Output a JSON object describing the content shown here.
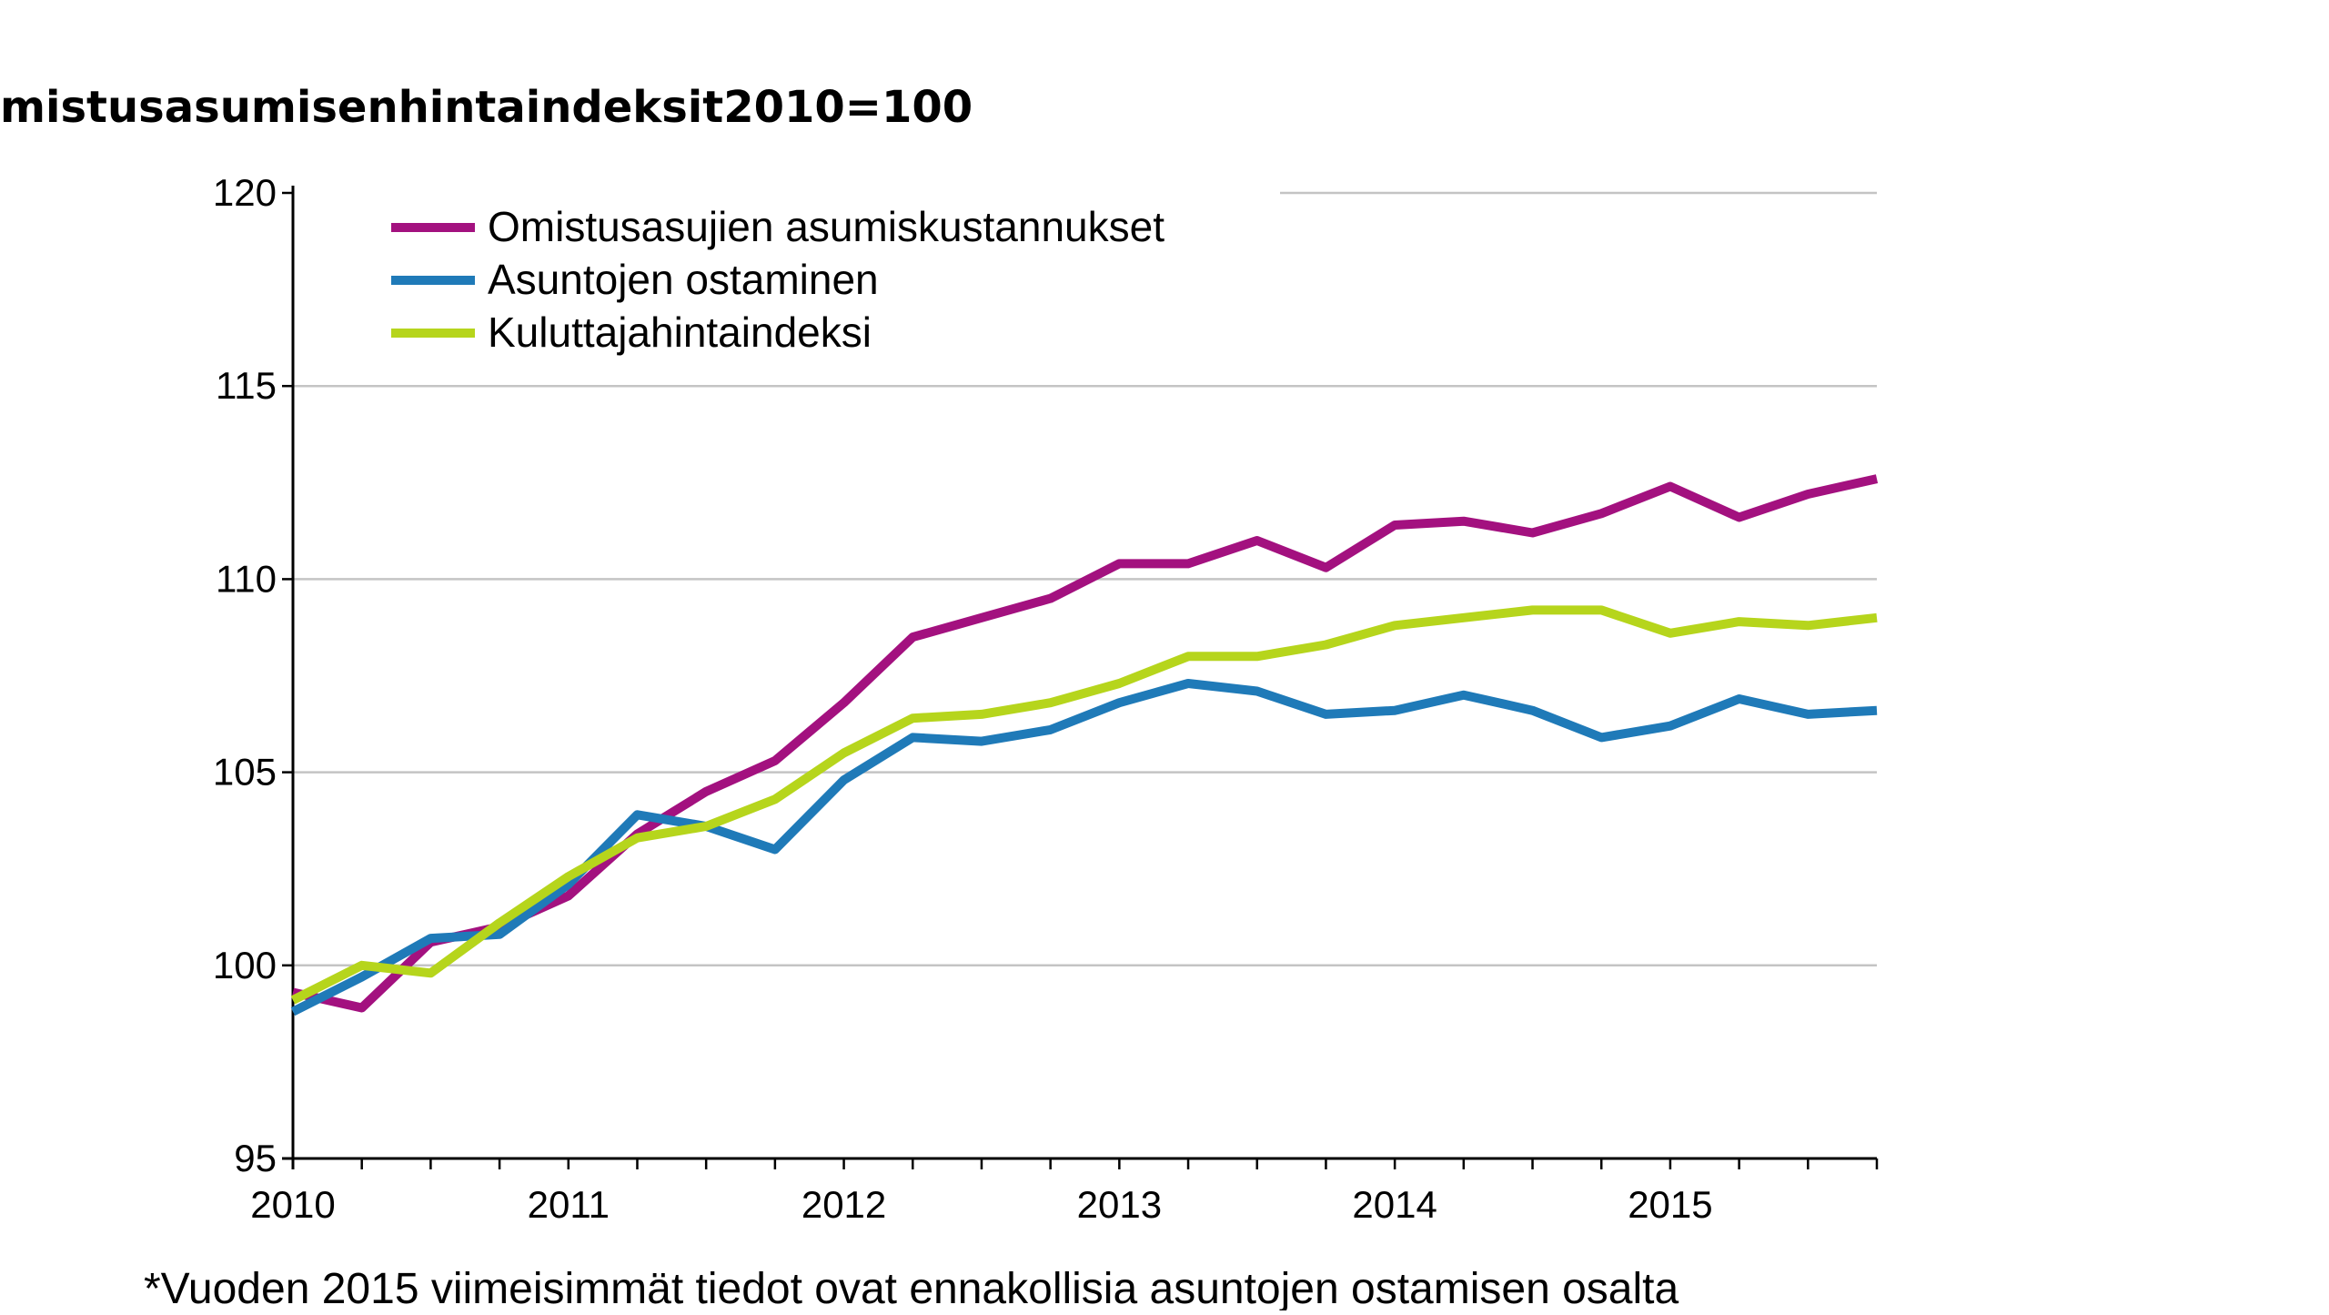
{
  "chart_data": {
    "type": "line",
    "title": "mistusasumisenhintaindeksit2010=100",
    "footnote": "*Vuoden 2015 viimeisimmät tiedot ovat ennakollisia asuntojen ostamisen osalta",
    "x_tick_labels": [
      "2010",
      "2011",
      "2012",
      "2013",
      "2014",
      "2015"
    ],
    "y_tick_labels": [
      "95",
      "100",
      "105",
      "110",
      "115",
      "120"
    ],
    "xlim": [
      2010.0,
      2015.75
    ],
    "ylim": [
      95,
      120
    ],
    "grid": true,
    "legend_position": "top-left",
    "x": [
      2010.0,
      2010.25,
      2010.5,
      2010.75,
      2011.0,
      2011.25,
      2011.5,
      2011.75,
      2012.0,
      2012.25,
      2012.5,
      2012.75,
      2013.0,
      2013.25,
      2013.5,
      2013.75,
      2014.0,
      2014.25,
      2014.5,
      2014.75,
      2015.0,
      2015.25,
      2015.5,
      2015.75
    ],
    "series": [
      {
        "name": "Omistusasujien asumiskustannukset",
        "color": "#a3117f",
        "values": [
          99.3,
          98.9,
          100.6,
          101.0,
          101.8,
          103.4,
          104.5,
          105.3,
          106.8,
          108.5,
          109.0,
          109.5,
          110.4,
          110.4,
          111.0,
          110.3,
          111.4,
          111.5,
          111.2,
          111.7,
          112.4,
          111.6,
          112.2,
          112.6
        ]
      },
      {
        "name": "Asuntojen ostaminen",
        "color": "#1f7ab8",
        "values": [
          98.8,
          99.7,
          100.7,
          100.8,
          102.1,
          103.9,
          103.6,
          103.0,
          104.8,
          105.9,
          105.8,
          106.1,
          106.8,
          107.3,
          107.1,
          106.5,
          106.6,
          107.0,
          106.6,
          105.9,
          106.2,
          106.9,
          106.5,
          106.6
        ]
      },
      {
        "name": "Kuluttajahintaindeksi",
        "color": "#b6d51c",
        "values": [
          99.1,
          100.0,
          99.8,
          101.1,
          102.3,
          103.3,
          103.6,
          104.3,
          105.5,
          106.4,
          106.5,
          106.8,
          107.3,
          108.0,
          108.0,
          108.3,
          108.8,
          109.0,
          109.2,
          109.2,
          108.6,
          108.9,
          108.8,
          109.0
        ]
      }
    ]
  }
}
